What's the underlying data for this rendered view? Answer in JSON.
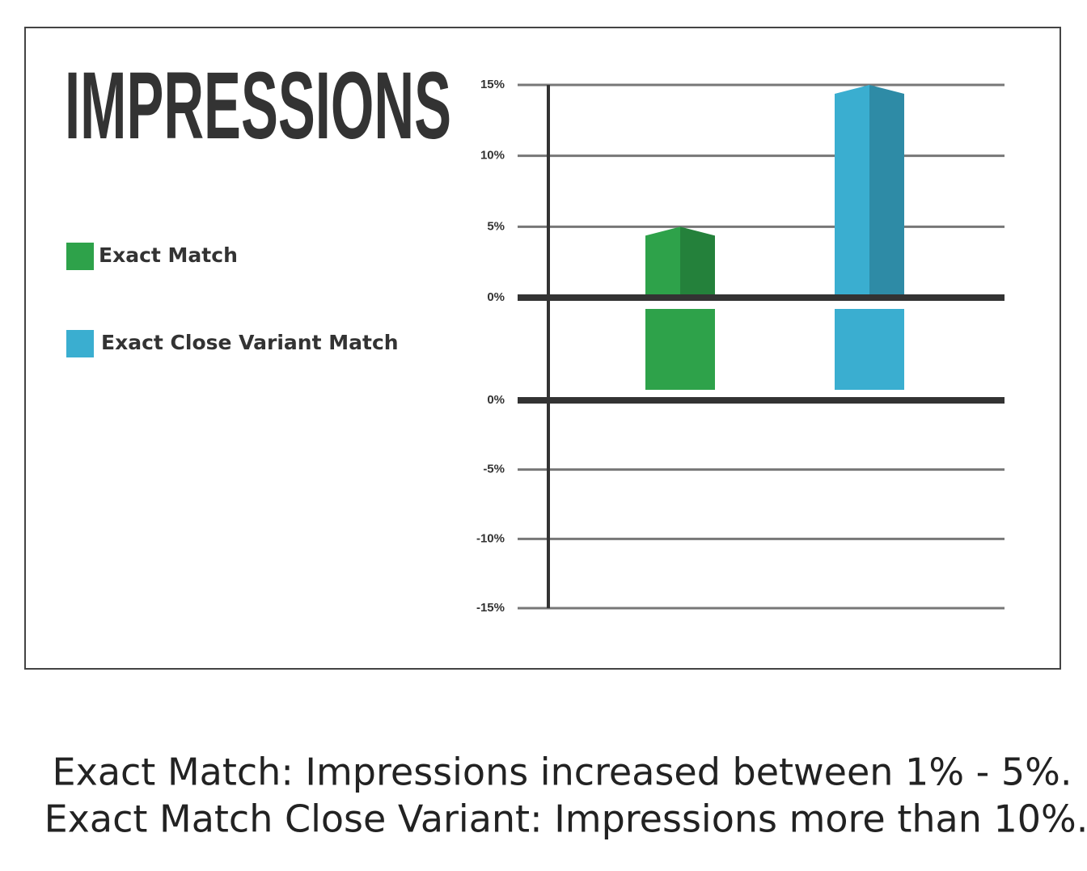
{
  "chart_data": [
    {
      "type": "bar",
      "title": "IMPRESSIONS",
      "series": [
        {
          "name": "Exact Match",
          "color": "#2ea24a",
          "values": [
            5
          ]
        },
        {
          "name": "Exact Close Variant Match",
          "color": "#3aaed0",
          "values": [
            15
          ]
        }
      ],
      "ylim": [
        0,
        15
      ],
      "yticks": [
        {
          "value": 15,
          "label": "15%"
        },
        {
          "value": 10,
          "label": "10%"
        },
        {
          "value": 5,
          "label": "5%"
        },
        {
          "value": 0,
          "label": "0%"
        }
      ],
      "grid": true
    },
    {
      "type": "bar",
      "ylim": [
        -15,
        0
      ],
      "yticks": [
        {
          "value": 0,
          "label": "0%"
        },
        {
          "value": -5,
          "label": "-5%"
        },
        {
          "value": -10,
          "label": "-10%"
        },
        {
          "value": -15,
          "label": "-15%"
        }
      ],
      "grid": true
    }
  ],
  "caption": [
    "Exact Match: Impressions increased between 1% - 5%.",
    "Exact Match Close Variant: Impressions more than 10%."
  ]
}
